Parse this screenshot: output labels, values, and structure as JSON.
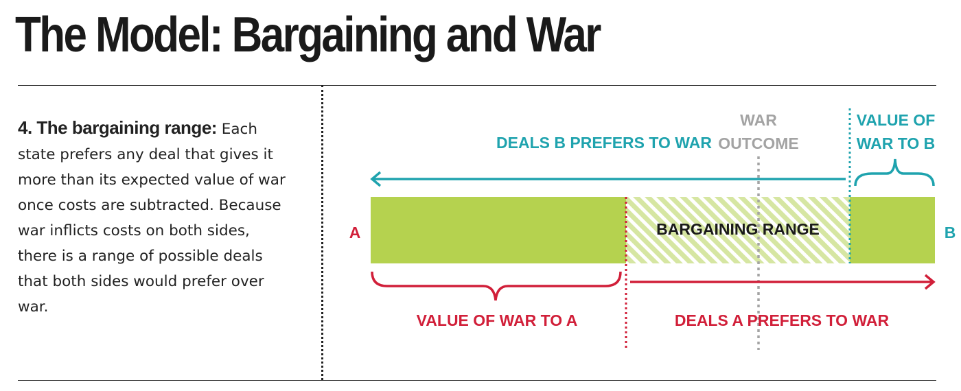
{
  "title": "The Model: Bargaining and War",
  "description": {
    "lead": "4. The bargaining range:",
    "body": " Each state prefers any deal that gives it more than its expected value of war once costs are subtracted. Because war inflicts costs on both sides, there is a range of possible deals that both sides would prefer over war."
  },
  "diagram": {
    "end_left": "A",
    "end_right": "B",
    "deals_b_prefers": "DEALS B PREFERS TO WAR",
    "war_outcome_line1": "WAR",
    "war_outcome_line2": "OUTCOME",
    "value_war_b_line1": "VALUE OF",
    "value_war_b_line2": "WAR TO B",
    "bargaining_range": "BARGAINING RANGE",
    "value_war_a": "VALUE OF WAR TO A",
    "deals_a_prefers": "DEALS A PREFERS TO WAR",
    "colors": {
      "bar": "#b5d24f",
      "teal": "#1fa3ae",
      "red": "#d11f39",
      "grey": "#a3a3a3"
    }
  }
}
